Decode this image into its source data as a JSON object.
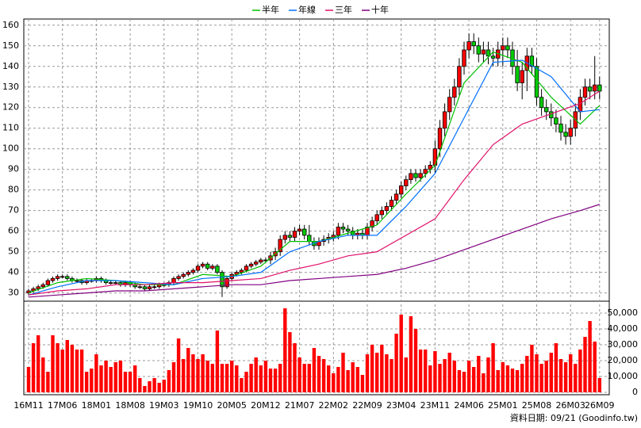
{
  "chart_data": [
    {
      "type": "candlestick",
      "categories": [
        "16M11",
        null,
        null,
        null,
        null,
        null,
        null,
        "17M06",
        null,
        null,
        null,
        null,
        null,
        null,
        "18M01",
        null,
        null,
        null,
        null,
        null,
        null,
        "18M08",
        null,
        null,
        null,
        null,
        null,
        null,
        "19M03",
        null,
        null,
        null,
        null,
        null,
        null,
        "19M10",
        null,
        null,
        null,
        null,
        null,
        null,
        "20M05",
        null,
        null,
        null,
        null,
        null,
        null,
        "20M12",
        null,
        null,
        null,
        null,
        null,
        null,
        "21M07",
        null,
        null,
        null,
        null,
        null,
        null,
        "22M02",
        null,
        null,
        null,
        null,
        null,
        null,
        "22M09",
        null,
        null,
        null,
        null,
        null,
        null,
        "23M04",
        null,
        null,
        null,
        null,
        null,
        null,
        "23M11",
        null,
        null,
        null,
        null,
        null,
        null,
        "24M06",
        null,
        null,
        null,
        null,
        null,
        null,
        "25M01",
        null,
        null,
        null,
        null,
        null,
        null,
        "25M08",
        null,
        null,
        null,
        null,
        null,
        null,
        "26M03",
        null,
        null,
        null,
        null,
        null,
        "26M09"
      ],
      "open": [
        30,
        31,
        32,
        33,
        34,
        36,
        37,
        38,
        38,
        37,
        36,
        36,
        35,
        36,
        36,
        37,
        36,
        35,
        35,
        35,
        34,
        35,
        34,
        33,
        33,
        32,
        33,
        33,
        34,
        34,
        35,
        37,
        38,
        39,
        40,
        41,
        43,
        44,
        42,
        43,
        40,
        33,
        37,
        39,
        40,
        41,
        43,
        44,
        45,
        46,
        46,
        48,
        50,
        56,
        58,
        57,
        60,
        61,
        58,
        55,
        53,
        55,
        56,
        57,
        58,
        62,
        61,
        60,
        58,
        59,
        58,
        62,
        65,
        68,
        70,
        72,
        75,
        78,
        82,
        85,
        88,
        86,
        88,
        90,
        92,
        100,
        110,
        118,
        125,
        130,
        140,
        148,
        152,
        150,
        146,
        148,
        145,
        144,
        148,
        150,
        148,
        140,
        132,
        138,
        145,
        140,
        125,
        120,
        118,
        115,
        112,
        108,
        106,
        110,
        118,
        125,
        130,
        128,
        131
      ],
      "high": [
        32,
        33,
        34,
        35,
        37,
        38,
        39,
        39,
        39,
        38,
        37,
        37,
        37,
        37,
        38,
        38,
        37,
        36,
        36,
        36,
        36,
        36,
        35,
        34,
        34,
        34,
        34,
        35,
        35,
        36,
        38,
        39,
        40,
        41,
        42,
        44,
        45,
        45,
        44,
        44,
        41,
        38,
        40,
        41,
        42,
        44,
        45,
        46,
        47,
        47,
        50,
        52,
        58,
        60,
        60,
        62,
        63,
        63,
        63,
        57,
        57,
        58,
        59,
        60,
        64,
        64,
        63,
        62,
        61,
        61,
        64,
        67,
        70,
        72,
        74,
        77,
        80,
        84,
        87,
        90,
        90,
        90,
        92,
        94,
        104,
        114,
        122,
        129,
        134,
        144,
        152,
        156,
        156,
        154,
        152,
        152,
        149,
        152,
        154,
        154,
        152,
        148,
        142,
        149,
        149,
        144,
        129,
        124,
        122,
        119,
        116,
        112,
        114,
        122,
        129,
        134,
        134,
        145,
        135
      ],
      "low": [
        29,
        30,
        31,
        32,
        33,
        35,
        36,
        37,
        36,
        35,
        35,
        34,
        34,
        35,
        35,
        35,
        34,
        34,
        34,
        33,
        33,
        33,
        32,
        32,
        31,
        31,
        32,
        32,
        33,
        33,
        34,
        36,
        37,
        38,
        39,
        40,
        42,
        41,
        41,
        39,
        28,
        32,
        36,
        38,
        39,
        40,
        42,
        43,
        44,
        45,
        44,
        46,
        48,
        54,
        55,
        55,
        58,
        56,
        53,
        51,
        51,
        53,
        54,
        55,
        56,
        59,
        58,
        56,
        56,
        56,
        56,
        60,
        63,
        66,
        68,
        70,
        73,
        76,
        80,
        83,
        84,
        84,
        86,
        88,
        88,
        96,
        106,
        114,
        121,
        126,
        136,
        144,
        146,
        142,
        142,
        141,
        140,
        140,
        140,
        144,
        136,
        128,
        124,
        128,
        136,
        121,
        116,
        114,
        111,
        108,
        104,
        102,
        102,
        106,
        114,
        121,
        124,
        124,
        124
      ],
      "close": [
        31,
        32,
        33,
        34,
        36,
        37,
        38,
        38,
        37,
        36,
        36,
        35,
        36,
        36,
        37,
        36,
        35,
        35,
        35,
        34,
        35,
        34,
        33,
        33,
        32,
        33,
        33,
        34,
        34,
        35,
        37,
        38,
        39,
        40,
        41,
        43,
        44,
        42,
        43,
        40,
        33,
        37,
        39,
        40,
        41,
        43,
        44,
        45,
        46,
        46,
        48,
        50,
        56,
        58,
        57,
        60,
        61,
        58,
        55,
        53,
        55,
        56,
        57,
        58,
        62,
        61,
        60,
        58,
        59,
        58,
        62,
        65,
        68,
        70,
        72,
        75,
        78,
        82,
        85,
        88,
        86,
        88,
        90,
        92,
        100,
        110,
        118,
        125,
        130,
        140,
        148,
        152,
        150,
        146,
        148,
        145,
        144,
        148,
        150,
        148,
        140,
        132,
        138,
        145,
        140,
        125,
        120,
        118,
        115,
        112,
        108,
        106,
        110,
        118,
        125,
        130,
        128,
        131,
        128
      ],
      "up_color": "#ff0000",
      "down_color": "#00cc00",
      "lines": [
        {
          "name": "半年",
          "color": "#00c000",
          "x": [
            0,
            6,
            12,
            18,
            24,
            30,
            36,
            42,
            48,
            54,
            60,
            66,
            72,
            78,
            84,
            90,
            96,
            102,
            108,
            114,
            118
          ],
          "values": [
            30,
            35,
            37,
            36,
            34,
            34,
            39,
            38,
            43,
            55,
            55,
            59,
            63,
            78,
            92,
            132,
            147,
            142,
            125,
            112,
            121
          ]
        },
        {
          "name": "年線",
          "color": "#0070ff",
          "x": [
            0,
            6,
            12,
            18,
            24,
            30,
            36,
            42,
            48,
            54,
            60,
            66,
            72,
            78,
            84,
            90,
            96,
            102,
            108,
            114,
            118
          ],
          "values": [
            29,
            33,
            36,
            36,
            35,
            34,
            37,
            38,
            40,
            50,
            55,
            58,
            58,
            72,
            88,
            115,
            142,
            143,
            135,
            118,
            119
          ]
        },
        {
          "name": "三年",
          "color": "#e0106a",
          "x": [
            0,
            6,
            12,
            18,
            24,
            30,
            36,
            42,
            48,
            54,
            60,
            66,
            72,
            78,
            84,
            90,
            96,
            102,
            108,
            114,
            118
          ],
          "values": [
            29,
            31,
            32,
            34,
            34,
            35,
            35,
            36,
            37,
            41,
            44,
            48,
            50,
            58,
            66,
            85,
            102,
            112,
            117,
            122,
            128
          ]
        },
        {
          "name": "十年",
          "color": "#800080",
          "x": [
            0,
            6,
            12,
            18,
            24,
            30,
            36,
            42,
            48,
            54,
            60,
            66,
            72,
            78,
            84,
            90,
            96,
            102,
            108,
            114,
            118
          ],
          "values": [
            28,
            29,
            30,
            31,
            31,
            32,
            33,
            34,
            34,
            36,
            37,
            38,
            39,
            42,
            46,
            51,
            56,
            61,
            66,
            70,
            73
          ]
        }
      ],
      "ylim": [
        26,
        163
      ],
      "yticks": [
        30,
        40,
        50,
        60,
        70,
        80,
        90,
        100,
        110,
        120,
        130,
        140,
        150,
        160
      ],
      "grid": true
    },
    {
      "type": "bar",
      "color": "#ff0000",
      "values": [
        16000,
        31000,
        36000,
        22000,
        13000,
        36000,
        31000,
        27000,
        33000,
        30000,
        27000,
        27000,
        13000,
        15000,
        24000,
        17000,
        20000,
        16000,
        19000,
        20000,
        13000,
        13000,
        17000,
        9000,
        4000,
        7000,
        9000,
        6000,
        8000,
        14000,
        19000,
        34000,
        21000,
        28000,
        24000,
        21000,
        24000,
        20000,
        18000,
        39000,
        18000,
        18000,
        20000,
        17000,
        9000,
        13000,
        18000,
        22000,
        17000,
        20000,
        15000,
        15000,
        18000,
        53000,
        38000,
        31000,
        22000,
        18000,
        18000,
        28000,
        23000,
        21000,
        17000,
        12000,
        16000,
        25000,
        14000,
        19000,
        16000,
        11000,
        24000,
        30000,
        25000,
        30000,
        24000,
        21000,
        37000,
        49000,
        22000,
        48000,
        40000,
        27000,
        27000,
        17000,
        26000,
        18000,
        21000,
        25000,
        20000,
        14000,
        13000,
        20000,
        16000,
        23000,
        12000,
        22000,
        31000,
        14000,
        19000,
        17000,
        15000,
        14000,
        18000,
        23000,
        30000,
        24000,
        18000,
        20000,
        25000,
        31000,
        21000,
        19000,
        24000,
        18000,
        27000,
        35000,
        45000,
        32000,
        9000
      ],
      "ylim": [
        0,
        57500
      ],
      "yticks": [
        {
          "value": 0,
          "label": "0"
        },
        {
          "value": 10000,
          "label": "10,000"
        },
        {
          "value": 20000,
          "label": "20,000"
        },
        {
          "value": 30000,
          "label": "30,000"
        },
        {
          "value": 40000,
          "label": "40,000"
        },
        {
          "value": 50000,
          "label": "50,000"
        }
      ],
      "grid": true
    }
  ],
  "source": "資料日期: 09/21 (Goodinfo.tw)"
}
